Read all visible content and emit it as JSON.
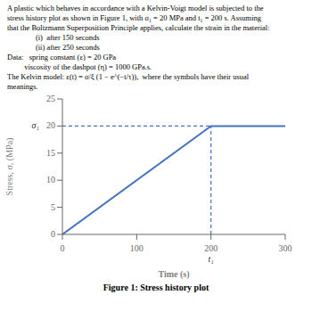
{
  "chart_data": {
    "type": "line",
    "title": "Figure 1: Stress history plot",
    "xlabel": "Time (s)",
    "ylabel": "Stress, σ, (MPa)",
    "annotations": [
      {
        "text": "A plastic which behaves in accordance with a Kelvin-Voigt model is subjected to the"
      },
      {
        "text": "stress history plot as shown in Figure 1, with σ₁ = 20 MPa and t₁ = 200 s. Assuming"
      },
      {
        "text": "that the Boltzmann Superposition Principle applies, calculate the strain in the material:"
      },
      {
        "text": "               (i)  after 150 seconds"
      },
      {
        "text": "               (ii) after 250 seconds"
      },
      {
        "text": "Data:   spring constant (ε) = 20 GPa"
      },
      {
        "text": "         viscosity of the dashpot (η) = 1000 GPa.s."
      },
      {
        "text": "The Kelvin model: ε(t) = σ/ξ (1 − e^(−t/τ)),  where the symbols have their usual"
      },
      {
        "text": "meanings."
      },
      {
        "text": "t₁",
        "x": 200
      },
      {
        "text": "σ₁",
        "y": 20
      }
    ],
    "series": [
      {
        "x": [
          0,
          200,
          300
        ],
        "values": [
          0,
          20,
          20
        ],
        "color": "#4472C4",
        "line_style": "solid"
      },
      {
        "x": [
          0,
          200
        ],
        "values": [
          20,
          20
        ],
        "color": "#4472C4",
        "line_style": "dashed"
      },
      {
        "x": [
          200,
          200
        ],
        "values": [
          0,
          20
        ],
        "color": "#4472C4",
        "line_style": "dashed"
      }
    ],
    "xlim": [
      0,
      300
    ],
    "ylim": [
      0,
      25
    ],
    "xticks": [
      0,
      100,
      200,
      300
    ],
    "yticks": [
      0,
      5,
      10,
      15,
      20,
      25
    ],
    "grid": false
  }
}
